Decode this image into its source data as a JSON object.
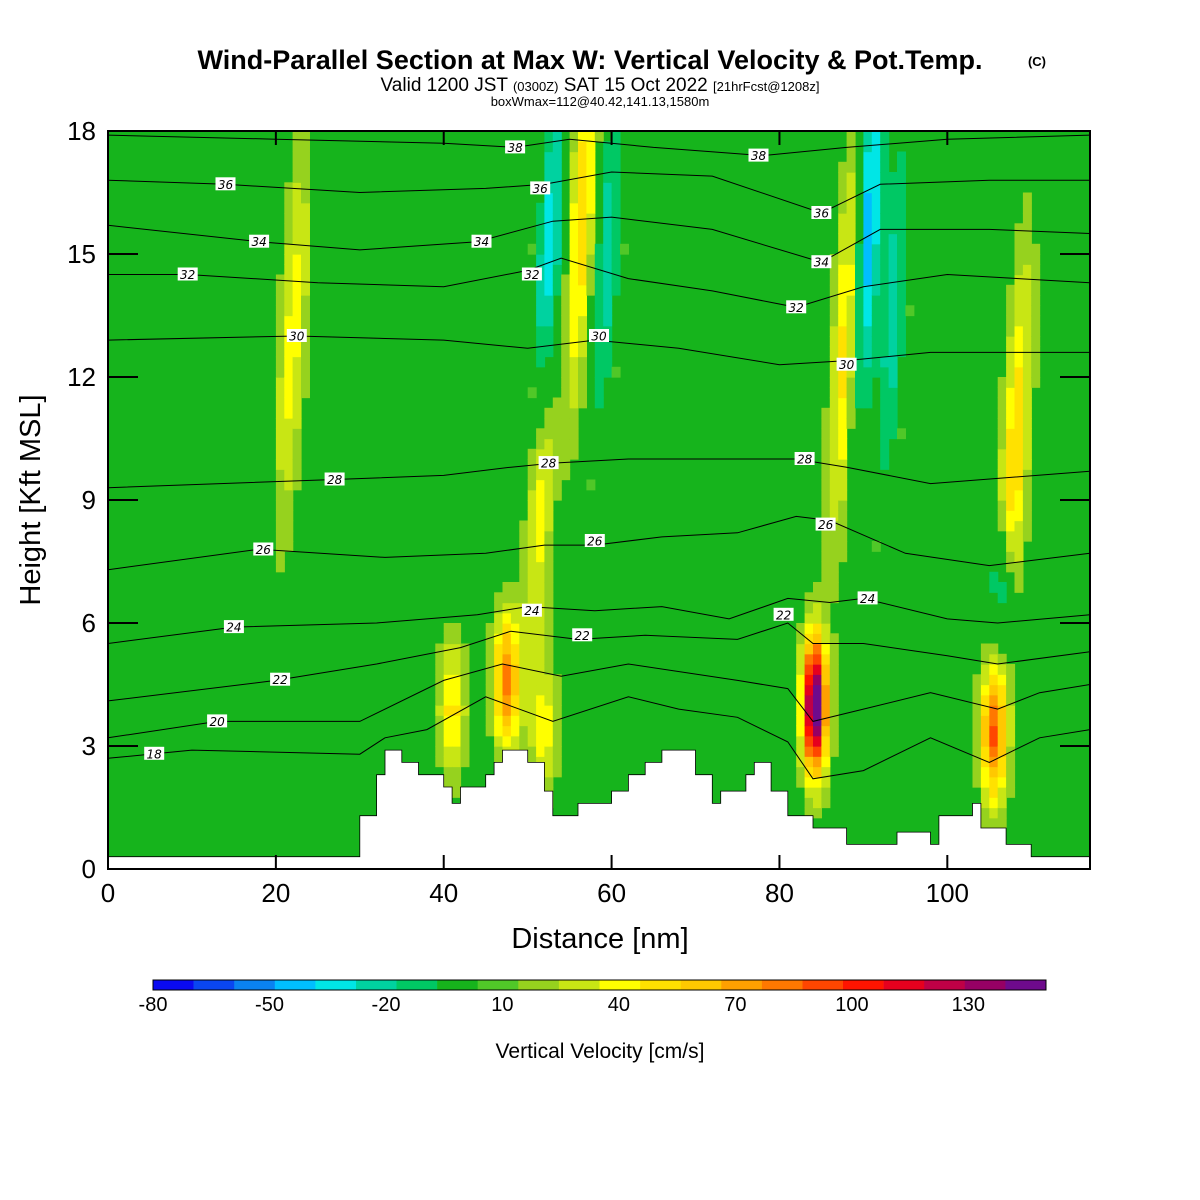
{
  "header": {
    "title": "Wind-Parallel Section at Max W: Vertical Velocity & Pot.Temp.",
    "copyright": "(C)",
    "valid_prefix": "Valid 1200 JST",
    "valid_utc": "(0300Z)",
    "valid_date": "SAT 15 Oct 2022",
    "forecast": "[21hrFcst@1208z]",
    "box_info": "boxWmax=112@40.42,141.13,1580m"
  },
  "colors": {
    "background_green": "#16b41c",
    "terrain": "#ffffff",
    "contour": "#000000"
  },
  "chart_data": {
    "type": "heatmap",
    "xlabel": "Distance [nm]",
    "ylabel": "Height [Kft MSL]",
    "xlim": [
      0,
      117
    ],
    "ylim": [
      0,
      18
    ],
    "x_ticks": [
      "0",
      "20",
      "40",
      "60",
      "80",
      "100"
    ],
    "y_ticks": [
      "0",
      "3",
      "6",
      "9",
      "12",
      "15",
      "18"
    ],
    "x_tick_values": [
      0,
      20,
      40,
      60,
      80,
      100
    ],
    "y_tick_values": [
      0,
      3,
      6,
      9,
      12,
      15,
      18
    ],
    "colorbar": {
      "label": "Vertical Velocity [cm/s]",
      "tick_labels": [
        "-80",
        "-50",
        "-20",
        "10",
        "40",
        "70",
        "100",
        "130"
      ],
      "tick_values": [
        -80,
        -50,
        -20,
        10,
        40,
        70,
        100,
        130
      ],
      "min": -80,
      "max": 150,
      "colors": [
        "#0a0af0",
        "#0a46f0",
        "#0a82f0",
        "#00beff",
        "#00e6e6",
        "#00d2a0",
        "#00c864",
        "#16b41c",
        "#50c828",
        "#96d21e",
        "#c8e614",
        "#ffff00",
        "#ffe100",
        "#ffc800",
        "#ffa000",
        "#ff7800",
        "#ff4600",
        "#ff1400",
        "#e6001e",
        "#be0046",
        "#960064",
        "#6e0a8c"
      ]
    },
    "updrafts": [
      {
        "x": 41,
        "z": 3.9,
        "w": 40
      },
      {
        "x": 47.5,
        "z": 4.6,
        "w": 70
      },
      {
        "x": 52,
        "z": 3.4,
        "w": 30
      },
      {
        "x": 84.2,
        "z": 4.0,
        "w": 145
      },
      {
        "x": 105.5,
        "z": 3.3,
        "w": 75
      },
      {
        "x": 22,
        "z": 13.0,
        "w": 30
      },
      {
        "x": 51.5,
        "z": 9.5,
        "w": 40
      },
      {
        "x": 56.5,
        "z": 16.0,
        "w": 45
      },
      {
        "x": 88,
        "z": 13.0,
        "w": 45
      },
      {
        "x": 108,
        "z": 10.0,
        "w": 45
      }
    ],
    "downdrafts": [
      {
        "x": 52.5,
        "z": 14.5,
        "w": -55
      },
      {
        "x": 59.5,
        "z": 15.0,
        "w": -35
      },
      {
        "x": 90.5,
        "z": 15.5,
        "w": -60
      },
      {
        "x": 93.5,
        "z": 13.5,
        "w": -35
      },
      {
        "x": 106.5,
        "z": 6.8,
        "w": -40
      }
    ],
    "terrain": {
      "x": [
        0,
        30,
        30,
        32,
        32,
        33,
        33,
        35,
        35,
        37,
        37,
        40,
        40,
        41,
        41,
        42,
        42,
        45,
        45,
        46,
        46,
        47,
        47,
        50,
        50,
        52,
        52,
        53,
        53,
        56,
        56,
        60,
        60,
        62,
        62,
        64,
        64,
        66,
        66,
        70,
        70,
        72,
        72,
        73,
        73,
        76,
        76,
        77,
        77,
        79,
        79,
        81,
        81,
        84,
        84,
        88,
        88,
        94,
        94,
        98,
        98,
        99,
        99,
        103,
        103,
        104,
        104,
        107,
        107,
        110,
        110,
        117
      ],
      "y": [
        0.3,
        0.3,
        1.3,
        1.3,
        2.3,
        2.3,
        2.9,
        2.9,
        2.6,
        2.6,
        2.3,
        2.3,
        2.0,
        2.0,
        1.6,
        1.6,
        2.0,
        2.0,
        2.3,
        2.3,
        2.6,
        2.6,
        2.9,
        2.9,
        2.6,
        2.6,
        1.9,
        1.9,
        1.3,
        1.3,
        1.6,
        1.6,
        1.9,
        1.9,
        2.3,
        2.3,
        2.6,
        2.6,
        2.9,
        2.9,
        2.3,
        2.3,
        1.6,
        1.6,
        1.9,
        1.9,
        2.3,
        2.3,
        2.6,
        2.6,
        1.9,
        1.9,
        1.3,
        1.3,
        1.0,
        1.0,
        0.6,
        0.6,
        0.9,
        0.9,
        0.6,
        0.6,
        1.3,
        1.3,
        1.6,
        1.6,
        1.0,
        1.0,
        0.6,
        0.6,
        0.3,
        0.3
      ]
    },
    "isentropes": [
      {
        "level": 18,
        "label": "18",
        "label_x": 5.5,
        "pts": [
          [
            0,
            2.7
          ],
          [
            10,
            2.9
          ],
          [
            30,
            2.8
          ],
          [
            33,
            3.2
          ],
          [
            38,
            3.4
          ],
          [
            45,
            4.2
          ],
          [
            53,
            3.6
          ],
          [
            62,
            4.2
          ],
          [
            68,
            3.9
          ],
          [
            75,
            3.7
          ],
          [
            81,
            3.1
          ],
          [
            84,
            2.2
          ],
          [
            90,
            2.4
          ],
          [
            98,
            3.2
          ],
          [
            105,
            2.6
          ],
          [
            111,
            3.2
          ],
          [
            117,
            3.4
          ]
        ]
      },
      {
        "level": 20,
        "label": "20",
        "label_x": 13,
        "pts": [
          [
            0,
            3.2
          ],
          [
            13,
            3.6
          ],
          [
            30,
            3.6
          ],
          [
            40,
            4.6
          ],
          [
            47,
            5.0
          ],
          [
            54,
            4.7
          ],
          [
            62,
            5.0
          ],
          [
            75,
            4.6
          ],
          [
            81,
            4.4
          ],
          [
            84,
            3.6
          ],
          [
            90,
            3.9
          ],
          [
            98,
            4.3
          ],
          [
            106,
            3.9
          ],
          [
            111,
            4.3
          ],
          [
            117,
            4.5
          ]
        ]
      },
      {
        "level": 22,
        "label": "22",
        "label_x": 20.5,
        "pts": [
          [
            0,
            4.1
          ],
          [
            20,
            4.6
          ],
          [
            32,
            5.0
          ],
          [
            42,
            5.4
          ],
          [
            48,
            5.8
          ],
          [
            56,
            5.6
          ],
          [
            64,
            5.7
          ],
          [
            75,
            5.6
          ],
          [
            81,
            6.0
          ],
          [
            84,
            5.5
          ],
          [
            90,
            5.5
          ],
          [
            100,
            5.2
          ],
          [
            106,
            5.0
          ],
          [
            117,
            5.3
          ]
        ]
      },
      {
        "level": 24,
        "label": "24",
        "label_x": 15,
        "pts": [
          [
            0,
            5.5
          ],
          [
            15,
            5.9
          ],
          [
            32,
            6.0
          ],
          [
            44,
            6.2
          ],
          [
            50,
            6.4
          ],
          [
            58,
            6.3
          ],
          [
            66,
            6.4
          ],
          [
            74,
            6.1
          ],
          [
            81,
            6.6
          ],
          [
            86,
            6.5
          ],
          [
            90,
            6.6
          ],
          [
            100,
            6.1
          ],
          [
            106,
            6.0
          ],
          [
            117,
            6.2
          ]
        ]
      },
      {
        "level": 26,
        "label": "26",
        "label_x": 18.5,
        "pts": [
          [
            0,
            7.3
          ],
          [
            18,
            7.8
          ],
          [
            33,
            7.6
          ],
          [
            45,
            7.7
          ],
          [
            52,
            7.9
          ],
          [
            58,
            7.9
          ],
          [
            66,
            8.1
          ],
          [
            75,
            8.2
          ],
          [
            82,
            8.6
          ],
          [
            86,
            8.5
          ],
          [
            95,
            7.7
          ],
          [
            105,
            7.4
          ],
          [
            117,
            7.7
          ]
        ]
      },
      {
        "level": 28,
        "label": "28",
        "label_x": 27,
        "pts": [
          [
            0,
            9.3
          ],
          [
            27,
            9.5
          ],
          [
            40,
            9.6
          ],
          [
            48,
            9.8
          ],
          [
            53,
            9.9
          ],
          [
            62,
            10.0
          ],
          [
            72,
            10.0
          ],
          [
            82,
            10.0
          ],
          [
            88,
            9.8
          ],
          [
            98,
            9.4
          ],
          [
            117,
            9.7
          ]
        ]
      },
      {
        "level": 30,
        "label": "30",
        "label_x": 22.5,
        "pts": [
          [
            0,
            12.9
          ],
          [
            22.5,
            13.0
          ],
          [
            40,
            12.9
          ],
          [
            50,
            12.7
          ],
          [
            58,
            12.9
          ],
          [
            68,
            12.7
          ],
          [
            80,
            12.3
          ],
          [
            88,
            12.4
          ],
          [
            98,
            12.6
          ],
          [
            117,
            12.6
          ]
        ]
      },
      {
        "level": 32,
        "label": "32",
        "label_x": 9.5,
        "pts": [
          [
            0,
            14.5
          ],
          [
            9.5,
            14.5
          ],
          [
            25,
            14.3
          ],
          [
            40,
            14.2
          ],
          [
            50,
            14.6
          ],
          [
            54,
            14.9
          ],
          [
            62,
            14.4
          ],
          [
            72,
            14.1
          ],
          [
            82,
            13.7
          ],
          [
            90,
            14.2
          ],
          [
            100,
            14.5
          ],
          [
            117,
            14.3
          ]
        ]
      },
      {
        "level": 34,
        "label": "34",
        "label_x": 18,
        "pts": [
          [
            0,
            15.7
          ],
          [
            18,
            15.3
          ],
          [
            30,
            15.1
          ],
          [
            44,
            15.3
          ],
          [
            53,
            15.8
          ],
          [
            60,
            15.9
          ],
          [
            72,
            15.6
          ],
          [
            85,
            14.8
          ],
          [
            92,
            15.6
          ],
          [
            105,
            15.6
          ],
          [
            117,
            15.5
          ]
        ]
      },
      {
        "level": 36,
        "label": "36",
        "label_x": 14,
        "pts": [
          [
            0,
            16.8
          ],
          [
            14,
            16.7
          ],
          [
            30,
            16.5
          ],
          [
            45,
            16.6
          ],
          [
            52,
            16.7
          ],
          [
            60,
            17.0
          ],
          [
            72,
            16.9
          ],
          [
            85,
            16.0
          ],
          [
            92,
            16.7
          ],
          [
            105,
            16.8
          ],
          [
            117,
            16.8
          ]
        ]
      },
      {
        "level": 38,
        "label": "38",
        "label_x": 48.5,
        "pts": [
          [
            0,
            17.9
          ],
          [
            20,
            17.8
          ],
          [
            40,
            17.7
          ],
          [
            48.5,
            17.6
          ],
          [
            55,
            17.8
          ],
          [
            65,
            17.6
          ],
          [
            78,
            17.4
          ],
          [
            88,
            17.6
          ],
          [
            100,
            17.8
          ],
          [
            117,
            17.9
          ]
        ]
      }
    ],
    "extra_labels": [
      {
        "label": "36",
        "x": 51.5,
        "z": 16.6
      },
      {
        "label": "34",
        "x": 44.5,
        "z": 15.3
      },
      {
        "label": "32",
        "x": 50.5,
        "z": 14.5
      },
      {
        "label": "30",
        "x": 58.5,
        "z": 13.0
      },
      {
        "label": "28",
        "x": 52.5,
        "z": 9.9
      },
      {
        "label": "26",
        "x": 58,
        "z": 8.0
      },
      {
        "label": "24",
        "x": 50.5,
        "z": 6.3
      },
      {
        "label": "22",
        "x": 56.5,
        "z": 5.7
      },
      {
        "label": "38",
        "x": 77.5,
        "z": 17.4
      },
      {
        "label": "36",
        "x": 85,
        "z": 16.0
      },
      {
        "label": "34",
        "x": 85,
        "z": 14.8
      },
      {
        "label": "32",
        "x": 82,
        "z": 13.7
      },
      {
        "label": "30",
        "x": 88,
        "z": 12.3
      },
      {
        "label": "28",
        "x": 83,
        "z": 10.0
      },
      {
        "label": "26",
        "x": 85.5,
        "z": 8.4
      },
      {
        "label": "22",
        "x": 80.5,
        "z": 6.2
      },
      {
        "label": "24",
        "x": 90.5,
        "z": 6.6
      }
    ]
  }
}
